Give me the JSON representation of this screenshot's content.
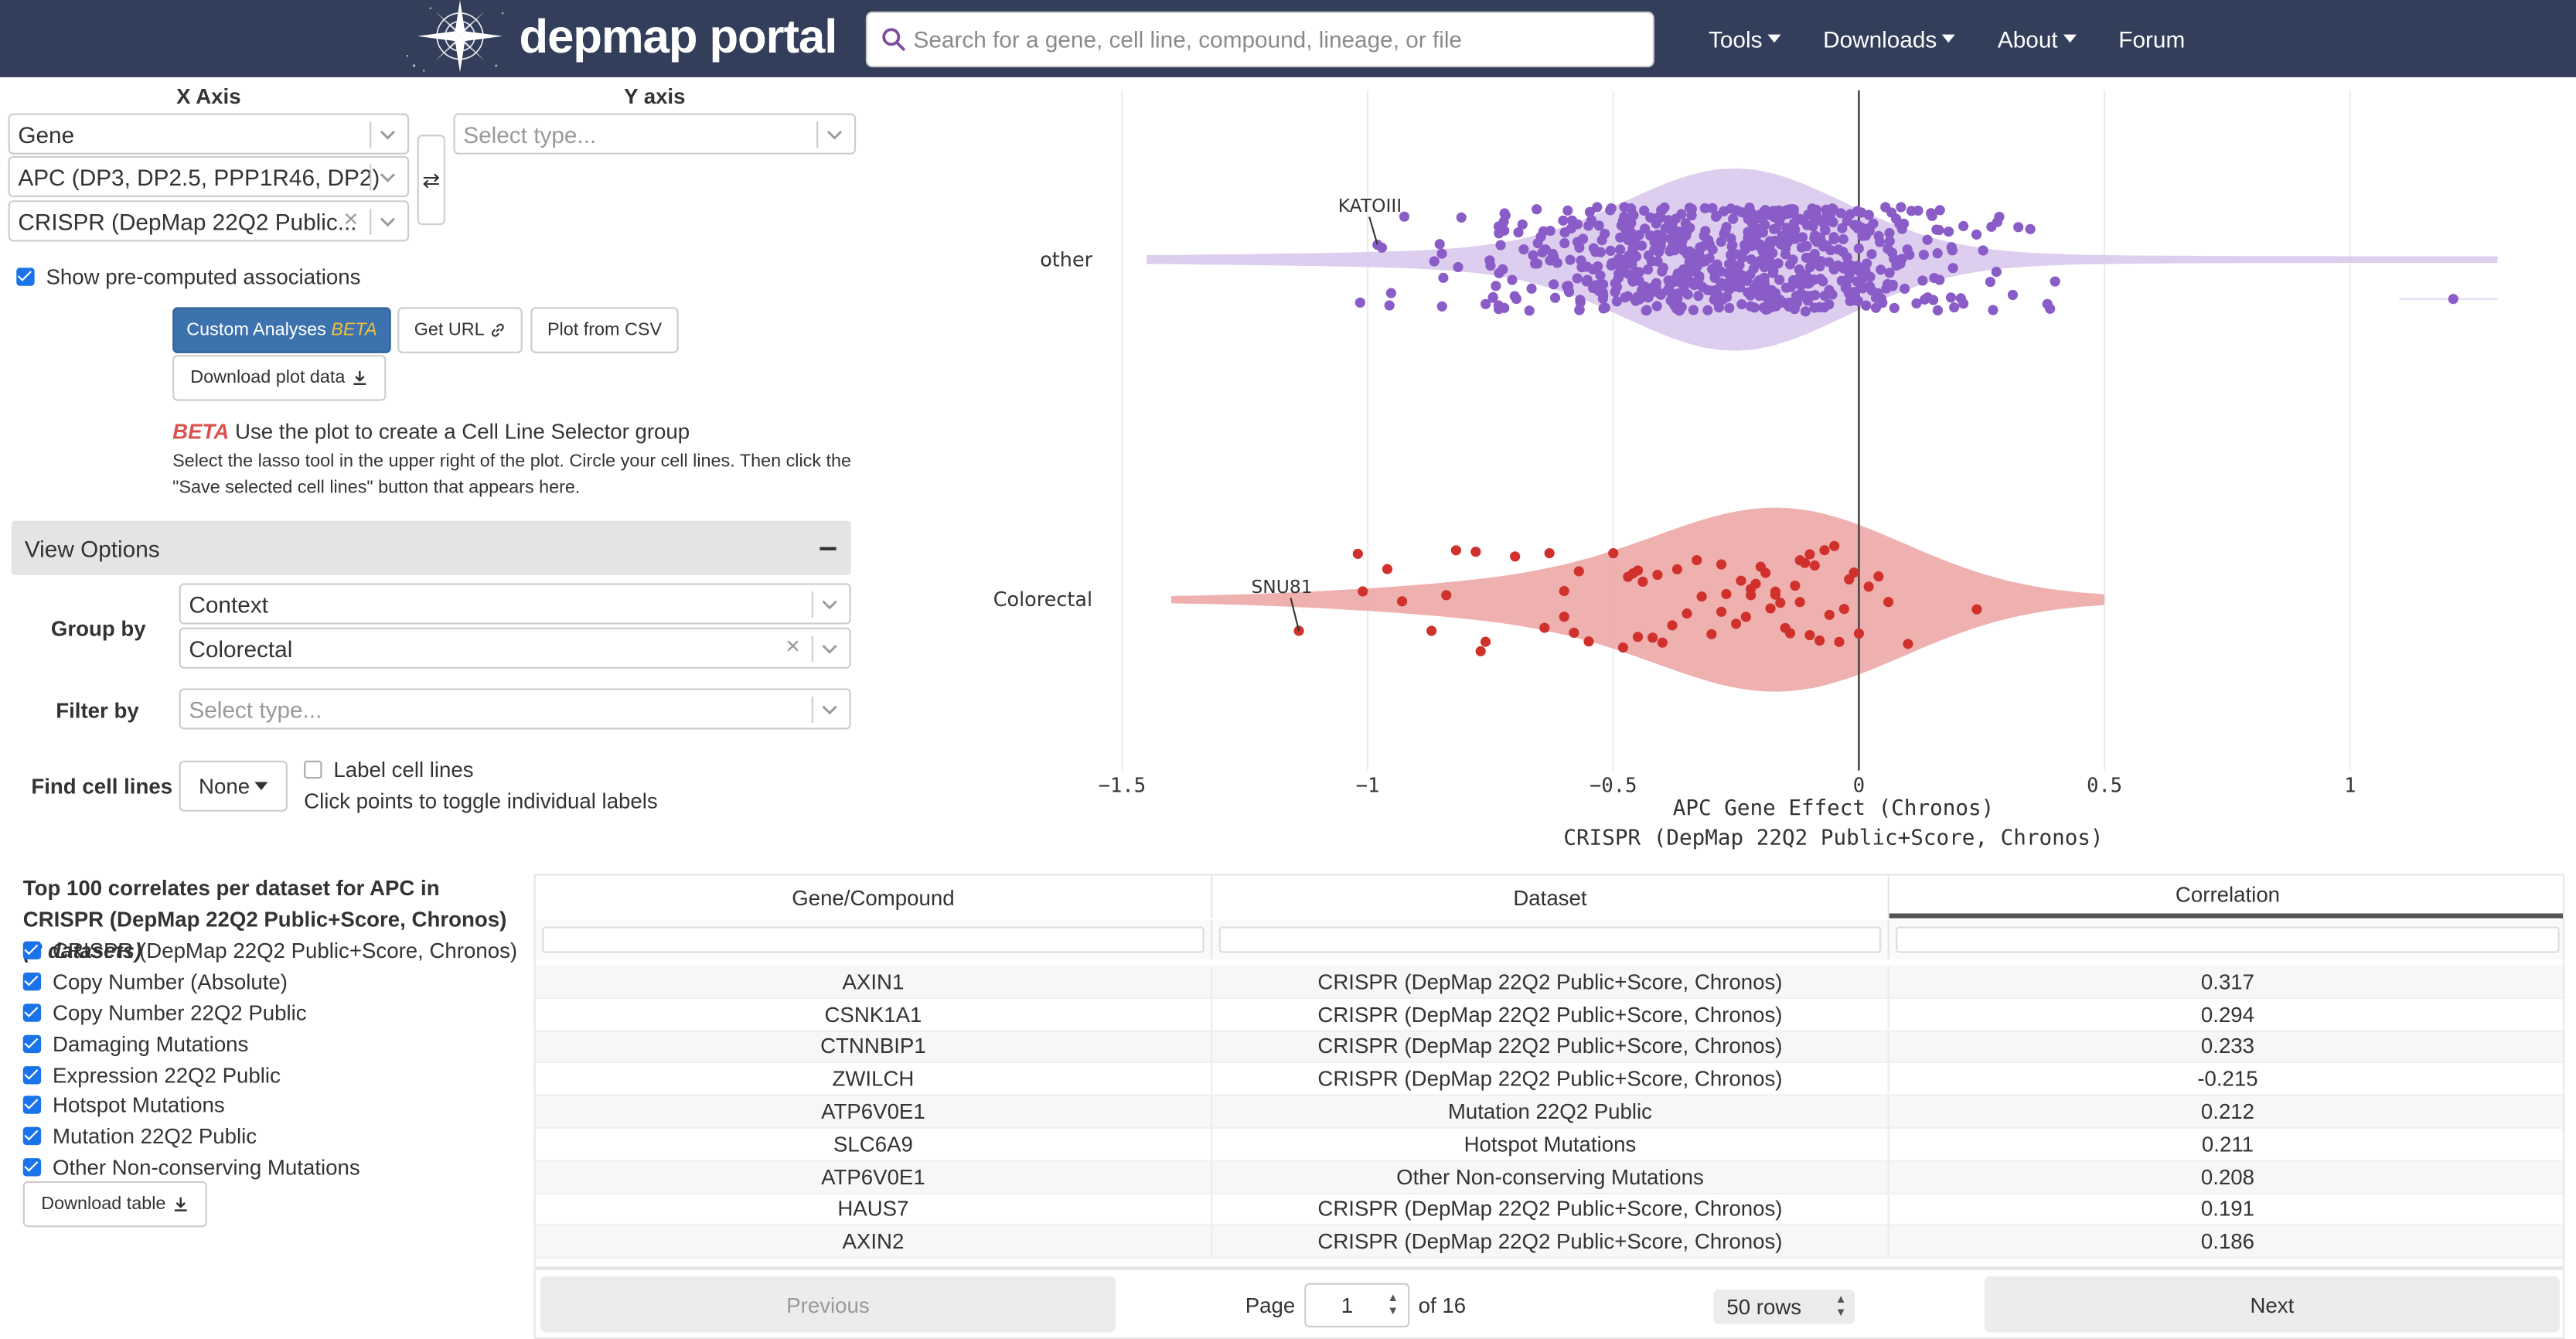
{
  "nav": {
    "brand": "depmap portal",
    "search_placeholder": "Search for a gene, cell line, compound, lineage, or file",
    "links": [
      "Tools",
      "Downloads",
      "About",
      "Forum"
    ]
  },
  "axes_panel": {
    "x_label": "X Axis",
    "y_label": "Y axis",
    "x_type": "Gene",
    "x_gene": "APC (DP3, DP2.5, PPP1R46, DP2)",
    "x_dataset": "CRISPR (DepMap 22Q2 Public...",
    "y_placeholder": "Select type...",
    "show_precomputed": "Show pre-computed associations"
  },
  "actions": {
    "custom_analyses": "Custom Analyses",
    "beta": "BETA",
    "get_url": "Get URL",
    "plot_from_csv": "Plot from CSV",
    "download_plot_data": "Download plot data"
  },
  "lasso_info": {
    "beta": "BETA",
    "title": "Use the plot to create a Cell Line Selector group",
    "body": "Select the lasso tool in the upper right of the plot. Circle your cell lines. Then click the \"Save selected cell lines\" button that appears here."
  },
  "view_options": {
    "title": "View Options",
    "group_by_label": "Group by",
    "group_by_value": "Context",
    "group_context": "Colorectal",
    "filter_by_label": "Filter by",
    "filter_placeholder": "Select type...",
    "find_label": "Find cell lines",
    "find_value": "None",
    "label_cell_lines": "Label cell lines",
    "toggle_hint": "Click points to toggle individual labels"
  },
  "chart_data": {
    "type": "scatter",
    "subtype": "violin-strip",
    "categories": [
      "other",
      "Colorectal"
    ],
    "x_ticks": [
      "−1.5",
      "−1",
      "−0.5",
      "0",
      "0.5",
      "1"
    ],
    "x_tick_values": [
      -1.5,
      -1,
      -0.5,
      0,
      0.5,
      1
    ],
    "xlabel": "APC Gene Effect (Chronos)",
    "xlabel2": "CRISPR (DepMap 22Q2 Public+Score, Chronos)",
    "xlim": [
      -1.65,
      1.35
    ],
    "annotations": [
      {
        "text": "KATOIII",
        "category": "other",
        "x": -0.98
      },
      {
        "text": "SNU81",
        "category": "Colorectal",
        "x": -1.14
      }
    ],
    "colors": {
      "other": "#8a5cc7",
      "Colorectal": "#d0312d",
      "other_violin": "#d9c8ec",
      "colorectal_violin": "#eda8a6"
    },
    "series": [
      {
        "name": "other",
        "outlier_x": 1.21,
        "violin_range": [
          -1.45,
          1.3
        ],
        "n_points": 700
      },
      {
        "name": "Colorectal",
        "values": [
          -1.14,
          -1.02,
          -1.01,
          -0.96,
          -0.93,
          -0.87,
          -0.84,
          -0.82,
          -0.78,
          -0.77,
          -0.76,
          -0.7,
          -0.64,
          -0.63,
          -0.6,
          -0.6,
          -0.58,
          -0.57,
          -0.55,
          -0.5,
          -0.48,
          -0.47,
          -0.46,
          -0.45,
          -0.45,
          -0.44,
          -0.42,
          -0.41,
          -0.4,
          -0.38,
          -0.37,
          -0.35,
          -0.33,
          -0.32,
          -0.3,
          -0.28,
          -0.28,
          -0.27,
          -0.25,
          -0.24,
          -0.23,
          -0.22,
          -0.22,
          -0.21,
          -0.2,
          -0.19,
          -0.18,
          -0.17,
          -0.17,
          -0.16,
          -0.15,
          -0.14,
          -0.13,
          -0.12,
          -0.12,
          -0.11,
          -0.1,
          -0.1,
          -0.09,
          -0.08,
          -0.07,
          -0.06,
          -0.05,
          -0.04,
          -0.03,
          -0.02,
          -0.01,
          0.0,
          0.02,
          0.04,
          0.06,
          0.1,
          0.24
        ]
      }
    ]
  },
  "correlates": {
    "title": "Top 100 correlates per dataset for APC in CRISPR (DepMap 22Q2 Public+Score, Chronos)",
    "count_note": "(8 datasets)",
    "datasets": [
      "CRISPR (DepMap 22Q2 Public+Score, Chronos)",
      "Copy Number (Absolute)",
      "Copy Number 22Q2 Public",
      "Damaging Mutations",
      "Expression 22Q2 Public",
      "Hotspot Mutations",
      "Mutation 22Q2 Public",
      "Other Non-conserving Mutations"
    ],
    "download_table": "Download table"
  },
  "table": {
    "columns": [
      "Gene/Compound",
      "Dataset",
      "Correlation"
    ],
    "rows": [
      [
        "AXIN1",
        "CRISPR (DepMap 22Q2 Public+Score, Chronos)",
        "0.317"
      ],
      [
        "CSNK1A1",
        "CRISPR (DepMap 22Q2 Public+Score, Chronos)",
        "0.294"
      ],
      [
        "CTNNBIP1",
        "CRISPR (DepMap 22Q2 Public+Score, Chronos)",
        "0.233"
      ],
      [
        "ZWILCH",
        "CRISPR (DepMap 22Q2 Public+Score, Chronos)",
        "-0.215"
      ],
      [
        "ATP6V0E1",
        "Mutation 22Q2 Public",
        "0.212"
      ],
      [
        "SLC6A9",
        "Hotspot Mutations",
        "0.211"
      ],
      [
        "ATP6V0E1",
        "Other Non-conserving Mutations",
        "0.208"
      ],
      [
        "HAUS7",
        "CRISPR (DepMap 22Q2 Public+Score, Chronos)",
        "0.191"
      ],
      [
        "AXIN2",
        "CRISPR (DepMap 22Q2 Public+Score, Chronos)",
        "0.186"
      ]
    ],
    "pager": {
      "previous": "Previous",
      "next": "Next",
      "page_label": "Page",
      "page": "1",
      "of": "of 16",
      "rows": "50 rows"
    }
  }
}
